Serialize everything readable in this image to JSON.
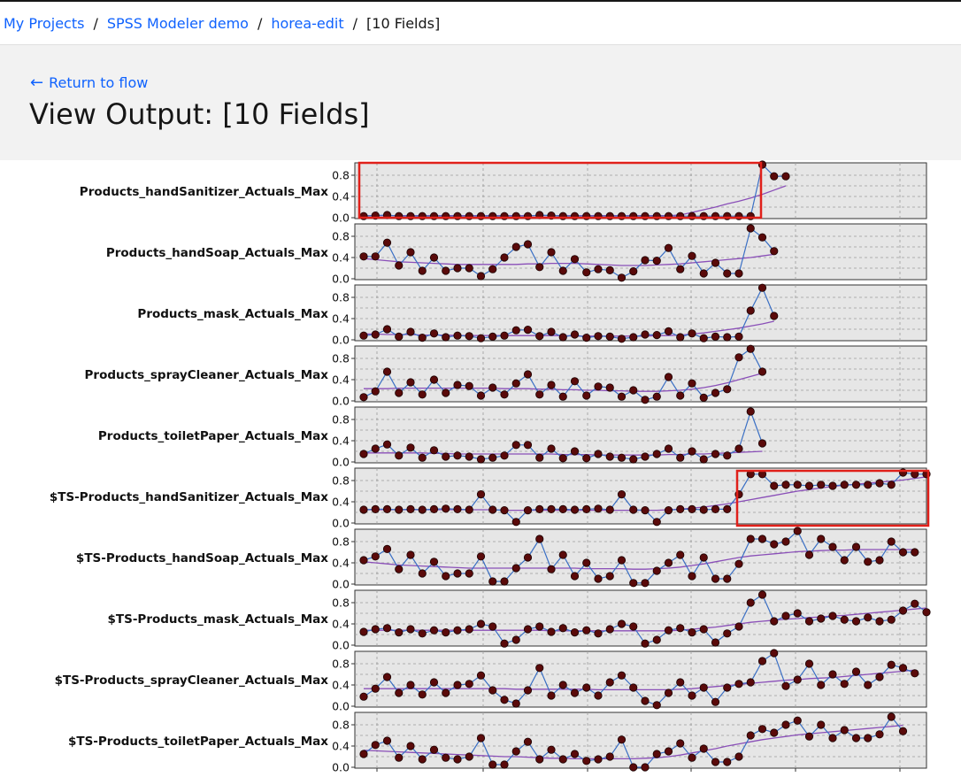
{
  "breadcrumb": {
    "items": [
      "My Projects",
      "SPSS Modeler demo",
      "horea-edit"
    ],
    "current": "[10 Fields]"
  },
  "header": {
    "back_label": "Return to flow",
    "title": "View Output: [10 Fields]"
  },
  "colors": {
    "link": "#0f62fe",
    "line": "#3a6fc4",
    "trend": "#8a4fb8",
    "marker": "#5a0a0a",
    "plot_bg": "#e6e6e6",
    "highlight": "#e0201a"
  },
  "chart_data": [
    {
      "type": "line",
      "ylabel": "Products_handSanitizer_Actuals_Max",
      "yticks": [
        "0.8",
        "0.4",
        "0.0"
      ],
      "ylim": [
        0,
        1
      ],
      "series": [
        {
          "values": [
            0.03,
            0.04,
            0.05,
            0.03,
            0.03,
            0.03,
            0.03,
            0.03,
            0.03,
            0.03,
            0.03,
            0.03,
            0.03,
            0.03,
            0.03,
            0.05,
            0.04,
            0.03,
            0.03,
            0.03,
            0.03,
            0.03,
            0.03,
            0.03,
            0.03,
            0.03,
            0.03,
            0.03,
            0.03,
            0.03,
            0.03,
            0.03,
            0.03,
            0.03,
            1.0,
            0.78,
            0.78
          ]
        }
      ],
      "trend": [
        0.04,
        0.04,
        0.04,
        0.04,
        0.04,
        0.04,
        0.04,
        0.04,
        0.04,
        0.04,
        0.04,
        0.04,
        0.04,
        0.04,
        0.04,
        0.04,
        0.04,
        0.04,
        0.04,
        0.04,
        0.04,
        0.04,
        0.04,
        0.04,
        0.04,
        0.04,
        0.04,
        0.05,
        0.1,
        0.15,
        0.2,
        0.26,
        0.31,
        0.37,
        0.44,
        0.52,
        0.6
      ]
    },
    {
      "type": "line",
      "ylabel": "Products_handSoap_Actuals_Max",
      "yticks": [
        "0.8",
        "0.4",
        "0.0"
      ],
      "ylim": [
        0,
        1
      ],
      "series": [
        {
          "values": [
            0.42,
            0.42,
            0.68,
            0.25,
            0.5,
            0.15,
            0.4,
            0.15,
            0.2,
            0.2,
            0.05,
            0.18,
            0.4,
            0.6,
            0.65,
            0.22,
            0.5,
            0.15,
            0.37,
            0.12,
            0.18,
            0.16,
            0.02,
            0.14,
            0.35,
            0.34,
            0.58,
            0.18,
            0.43,
            0.1,
            0.3,
            0.1,
            0.1,
            0.95,
            0.78,
            0.52
          ]
        }
      ],
      "trend": [
        0.38,
        0.36,
        0.34,
        0.32,
        0.31,
        0.3,
        0.29,
        0.28,
        0.27,
        0.27,
        0.27,
        0.27,
        0.27,
        0.27,
        0.28,
        0.28,
        0.29,
        0.29,
        0.29,
        0.28,
        0.27,
        0.26,
        0.25,
        0.25,
        0.25,
        0.26,
        0.27,
        0.28,
        0.3,
        0.32,
        0.34,
        0.36,
        0.38,
        0.4,
        0.43,
        0.46
      ]
    },
    {
      "type": "line",
      "ylabel": "Products_mask_Actuals_Max",
      "yticks": [
        "0.8",
        "0.4",
        "0.0"
      ],
      "ylim": [
        0,
        1
      ],
      "series": [
        {
          "values": [
            0.08,
            0.1,
            0.2,
            0.06,
            0.15,
            0.04,
            0.12,
            0.05,
            0.08,
            0.07,
            0.03,
            0.06,
            0.08,
            0.18,
            0.19,
            0.07,
            0.15,
            0.05,
            0.1,
            0.04,
            0.07,
            0.06,
            0.02,
            0.05,
            0.1,
            0.09,
            0.16,
            0.05,
            0.12,
            0.03,
            0.06,
            0.05,
            0.06,
            0.55,
            0.98,
            0.45
          ]
        }
      ],
      "trend": [
        0.11,
        0.11,
        0.1,
        0.1,
        0.1,
        0.09,
        0.09,
        0.09,
        0.08,
        0.08,
        0.08,
        0.08,
        0.08,
        0.08,
        0.08,
        0.08,
        0.08,
        0.08,
        0.07,
        0.07,
        0.07,
        0.07,
        0.07,
        0.07,
        0.07,
        0.08,
        0.08,
        0.09,
        0.11,
        0.13,
        0.16,
        0.19,
        0.22,
        0.26,
        0.3,
        0.35
      ]
    },
    {
      "type": "line",
      "ylabel": "Products_sprayCleaner_Actuals_Max",
      "yticks": [
        "0.8",
        "0.4",
        "0.0"
      ],
      "ylim": [
        0,
        1
      ],
      "series": [
        {
          "values": [
            0.07,
            0.18,
            0.55,
            0.15,
            0.35,
            0.12,
            0.4,
            0.15,
            0.3,
            0.28,
            0.1,
            0.25,
            0.12,
            0.33,
            0.5,
            0.12,
            0.3,
            0.08,
            0.37,
            0.1,
            0.27,
            0.25,
            0.08,
            0.2,
            0.02,
            0.08,
            0.45,
            0.1,
            0.33,
            0.06,
            0.15,
            0.22,
            0.82,
            0.98,
            0.55
          ]
        }
      ],
      "trend": [
        0.23,
        0.23,
        0.23,
        0.24,
        0.24,
        0.24,
        0.24,
        0.24,
        0.24,
        0.24,
        0.24,
        0.24,
        0.23,
        0.23,
        0.23,
        0.22,
        0.22,
        0.21,
        0.21,
        0.2,
        0.2,
        0.19,
        0.19,
        0.18,
        0.18,
        0.18,
        0.19,
        0.2,
        0.22,
        0.25,
        0.29,
        0.34,
        0.4,
        0.46,
        0.52
      ]
    },
    {
      "type": "line",
      "ylabel": "Products_toiletPaper_Actuals_Max",
      "yticks": [
        "0.8",
        "0.4",
        "0.0"
      ],
      "ylim": [
        0,
        1
      ],
      "series": [
        {
          "values": [
            0.15,
            0.25,
            0.33,
            0.12,
            0.27,
            0.08,
            0.22,
            0.1,
            0.12,
            0.1,
            0.05,
            0.08,
            0.12,
            0.32,
            0.32,
            0.08,
            0.25,
            0.07,
            0.2,
            0.07,
            0.15,
            0.1,
            0.08,
            0.05,
            0.1,
            0.15,
            0.25,
            0.08,
            0.2,
            0.05,
            0.15,
            0.12,
            0.25,
            0.95,
            0.35
          ]
        }
      ],
      "trend": [
        0.17,
        0.17,
        0.17,
        0.17,
        0.17,
        0.17,
        0.16,
        0.16,
        0.15,
        0.15,
        0.15,
        0.15,
        0.15,
        0.15,
        0.15,
        0.15,
        0.15,
        0.14,
        0.14,
        0.14,
        0.13,
        0.13,
        0.13,
        0.13,
        0.13,
        0.13,
        0.14,
        0.14,
        0.15,
        0.15,
        0.16,
        0.17,
        0.18,
        0.19,
        0.2
      ]
    },
    {
      "type": "line",
      "ylabel": "$TS-Products_handSanitizer_Actuals_Max",
      "yticks": [
        "0.8",
        "0.4",
        "0.0"
      ],
      "ylim": [
        0,
        1
      ],
      "series": [
        {
          "values": [
            0.25,
            0.26,
            0.26,
            0.25,
            0.26,
            0.25,
            0.26,
            0.27,
            0.26,
            0.25,
            0.54,
            0.25,
            0.24,
            0.02,
            0.24,
            0.26,
            0.26,
            0.26,
            0.25,
            0.26,
            0.27,
            0.25,
            0.54,
            0.25,
            0.24,
            0.02,
            0.24,
            0.26,
            0.26,
            0.25,
            0.26,
            0.26,
            0.54,
            0.92,
            0.92,
            0.7,
            0.72,
            0.72,
            0.7,
            0.72,
            0.7,
            0.72,
            0.72,
            0.72,
            0.75,
            0.72,
            0.95,
            0.92,
            0.92
          ]
        }
      ],
      "trend": [
        0.25,
        0.25,
        0.25,
        0.25,
        0.25,
        0.25,
        0.25,
        0.25,
        0.25,
        0.25,
        0.25,
        0.25,
        0.24,
        0.24,
        0.24,
        0.24,
        0.24,
        0.24,
        0.24,
        0.24,
        0.24,
        0.24,
        0.24,
        0.24,
        0.24,
        0.24,
        0.25,
        0.26,
        0.28,
        0.3,
        0.33,
        0.36,
        0.4,
        0.44,
        0.48,
        0.52,
        0.56,
        0.6,
        0.63,
        0.66,
        0.69,
        0.71,
        0.73,
        0.75,
        0.77,
        0.79,
        0.81,
        0.84,
        0.87
      ]
    },
    {
      "type": "line",
      "ylabel": "$TS-Products_handSoap_Actuals_Max",
      "yticks": [
        "0.8",
        "0.4",
        "0.0"
      ],
      "ylim": [
        0,
        1
      ],
      "series": [
        {
          "values": [
            0.45,
            0.52,
            0.66,
            0.28,
            0.55,
            0.2,
            0.42,
            0.15,
            0.2,
            0.2,
            0.52,
            0.05,
            0.05,
            0.3,
            0.5,
            0.85,
            0.28,
            0.55,
            0.15,
            0.4,
            0.1,
            0.15,
            0.45,
            0.02,
            0.02,
            0.25,
            0.4,
            0.55,
            0.15,
            0.5,
            0.1,
            0.1,
            0.38,
            0.85,
            0.85,
            0.75,
            0.8,
            1.0,
            0.55,
            0.85,
            0.7,
            0.45,
            0.7,
            0.42,
            0.45,
            0.8,
            0.6,
            0.6
          ]
        }
      ],
      "trend": [
        0.42,
        0.4,
        0.38,
        0.36,
        0.35,
        0.34,
        0.33,
        0.32,
        0.31,
        0.3,
        0.3,
        0.3,
        0.3,
        0.3,
        0.3,
        0.3,
        0.3,
        0.3,
        0.3,
        0.29,
        0.29,
        0.29,
        0.29,
        0.28,
        0.28,
        0.29,
        0.3,
        0.32,
        0.35,
        0.38,
        0.42,
        0.46,
        0.5,
        0.53,
        0.55,
        0.57,
        0.59,
        0.61,
        0.62,
        0.63,
        0.64,
        0.64,
        0.65,
        0.65,
        0.65,
        0.65,
        0.65,
        0.65
      ]
    },
    {
      "type": "line",
      "ylabel": "$TS-Products_mask_Actuals_Max",
      "yticks": [
        "0.8",
        "0.4",
        "0.0"
      ],
      "ylim": [
        0,
        1
      ],
      "series": [
        {
          "values": [
            0.25,
            0.3,
            0.32,
            0.24,
            0.3,
            0.22,
            0.28,
            0.24,
            0.28,
            0.3,
            0.4,
            0.35,
            0.03,
            0.1,
            0.3,
            0.35,
            0.25,
            0.32,
            0.24,
            0.28,
            0.22,
            0.3,
            0.4,
            0.35,
            0.03,
            0.1,
            0.28,
            0.32,
            0.24,
            0.3,
            0.05,
            0.22,
            0.35,
            0.8,
            0.95,
            0.45,
            0.55,
            0.6,
            0.45,
            0.5,
            0.55,
            0.48,
            0.45,
            0.52,
            0.45,
            0.48,
            0.65,
            0.78,
            0.62
          ]
        }
      ],
      "trend": [
        0.28,
        0.28,
        0.28,
        0.28,
        0.28,
        0.28,
        0.28,
        0.28,
        0.28,
        0.28,
        0.28,
        0.28,
        0.28,
        0.28,
        0.28,
        0.28,
        0.27,
        0.27,
        0.27,
        0.27,
        0.27,
        0.27,
        0.27,
        0.27,
        0.27,
        0.27,
        0.27,
        0.28,
        0.3,
        0.32,
        0.34,
        0.37,
        0.4,
        0.43,
        0.45,
        0.47,
        0.49,
        0.5,
        0.52,
        0.53,
        0.55,
        0.56,
        0.58,
        0.6,
        0.62,
        0.64,
        0.66,
        0.68,
        0.7
      ]
    },
    {
      "type": "line",
      "ylabel": "$TS-Products_sprayCleaner_Actuals_Max",
      "yticks": [
        "0.8",
        "0.4",
        "0.0"
      ],
      "ylim": [
        0,
        1
      ],
      "series": [
        {
          "values": [
            0.18,
            0.33,
            0.55,
            0.25,
            0.4,
            0.22,
            0.45,
            0.25,
            0.4,
            0.42,
            0.58,
            0.3,
            0.12,
            0.05,
            0.3,
            0.72,
            0.2,
            0.4,
            0.25,
            0.35,
            0.2,
            0.45,
            0.58,
            0.35,
            0.1,
            0.02,
            0.25,
            0.45,
            0.2,
            0.35,
            0.08,
            0.35,
            0.42,
            0.45,
            0.85,
            1.0,
            0.38,
            0.5,
            0.8,
            0.4,
            0.6,
            0.42,
            0.65,
            0.4,
            0.55,
            0.78,
            0.72,
            0.62
          ]
        }
      ],
      "trend": [
        0.33,
        0.33,
        0.33,
        0.33,
        0.33,
        0.33,
        0.33,
        0.33,
        0.33,
        0.33,
        0.33,
        0.33,
        0.33,
        0.32,
        0.32,
        0.32,
        0.32,
        0.32,
        0.32,
        0.32,
        0.31,
        0.31,
        0.31,
        0.31,
        0.31,
        0.31,
        0.31,
        0.32,
        0.33,
        0.35,
        0.37,
        0.39,
        0.41,
        0.43,
        0.45,
        0.47,
        0.49,
        0.5,
        0.52,
        0.53,
        0.54,
        0.56,
        0.58,
        0.6,
        0.62,
        0.64,
        0.66,
        0.68
      ]
    },
    {
      "type": "line",
      "ylabel": "$TS-Products_toiletPaper_Actuals_Max",
      "yticks": [
        "0.8",
        "0.4",
        "0.0"
      ],
      "ylim": [
        0,
        1
      ],
      "series": [
        {
          "values": [
            0.25,
            0.42,
            0.5,
            0.18,
            0.4,
            0.15,
            0.33,
            0.18,
            0.15,
            0.2,
            0.55,
            0.05,
            0.05,
            0.3,
            0.48,
            0.15,
            0.33,
            0.15,
            0.25,
            0.12,
            0.15,
            0.2,
            0.52,
            0.0,
            0.0,
            0.25,
            0.3,
            0.45,
            0.18,
            0.35,
            0.1,
            0.1,
            0.2,
            0.6,
            0.72,
            0.65,
            0.8,
            0.88,
            0.58,
            0.8,
            0.55,
            0.7,
            0.55,
            0.55,
            0.62,
            0.95,
            0.68
          ]
        }
      ],
      "trend": [
        0.32,
        0.31,
        0.3,
        0.29,
        0.28,
        0.27,
        0.26,
        0.25,
        0.24,
        0.23,
        0.22,
        0.21,
        0.2,
        0.2,
        0.19,
        0.18,
        0.17,
        0.17,
        0.16,
        0.16,
        0.16,
        0.16,
        0.16,
        0.16,
        0.17,
        0.18,
        0.2,
        0.23,
        0.27,
        0.31,
        0.35,
        0.4,
        0.44,
        0.48,
        0.52,
        0.55,
        0.58,
        0.61,
        0.63,
        0.65,
        0.67,
        0.69,
        0.71,
        0.73,
        0.75,
        0.77,
        0.79
      ]
    }
  ]
}
